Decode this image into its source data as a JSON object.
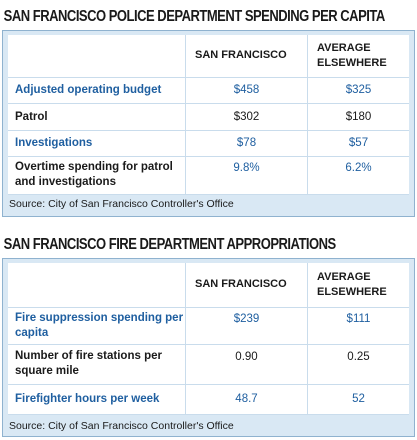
{
  "police": {
    "title": "SAN FRANCISCO POLICE DEPARTMENT SPENDING PER CAPITA",
    "columns": [
      "SAN FRANCISCO",
      "AVERAGE ELSEWHERE"
    ],
    "rows": [
      {
        "label": "Adjusted operating budget",
        "sf": "$458",
        "avg": "$325"
      },
      {
        "label": "Patrol",
        "sf": "$302",
        "avg": "$180"
      },
      {
        "label": "Investigations",
        "sf": "$78",
        "avg": "$57"
      },
      {
        "label": "Overtime spending for patrol and investigations",
        "sf": "9.8%",
        "avg": "6.2%"
      }
    ],
    "source": "Source: City of San Francisco Controller's Office"
  },
  "fire": {
    "title": "SAN FRANCISCO FIRE DEPARTMENT APPROPRIATIONS",
    "columns": [
      "SAN FRANCISCO",
      "AVERAGE ELSEWHERE"
    ],
    "rows": [
      {
        "label": "Fire suppression spending per capita",
        "sf": "$239",
        "avg": "$111"
      },
      {
        "label": "Number of fire stations per square mile",
        "sf": "0.90",
        "avg": "0.25"
      },
      {
        "label": "Firefighter hours per week",
        "sf": "48.7",
        "avg": "52"
      }
    ],
    "source": "Source: City of San Francisco Controller's Office"
  },
  "colors": {
    "panel_background": "#d9e8f4",
    "panel_border": "#8fb2cf",
    "accent_text": "#1f5fa0"
  }
}
